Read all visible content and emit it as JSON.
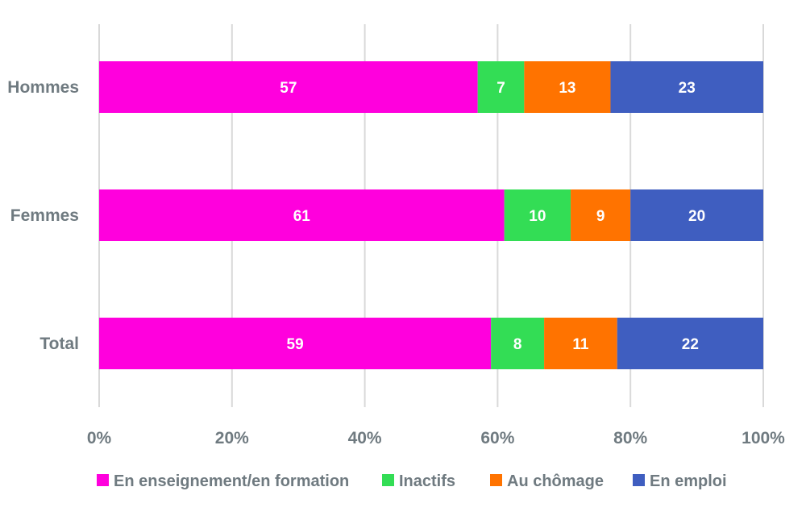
{
  "chart_data": {
    "type": "bar",
    "orientation": "horizontal",
    "stacked": true,
    "percent_stacked": true,
    "categories": [
      "Hommes",
      "Femmes",
      "Total"
    ],
    "series": [
      {
        "name": "En enseignement/en formation",
        "values": [
          57,
          61,
          59
        ],
        "color": "#ff00dd"
      },
      {
        "name": "Inactifs",
        "values": [
          7,
          10,
          8
        ],
        "color": "#33dd55"
      },
      {
        "name": "Au chômage",
        "values": [
          13,
          9,
          11
        ],
        "color": "#ff7300"
      },
      {
        "name": "En emploi",
        "values": [
          23,
          20,
          22
        ],
        "color": "#3f5ec0"
      }
    ],
    "x_ticks": [
      "0%",
      "20%",
      "40%",
      "60%",
      "80%",
      "100%"
    ],
    "xlim": [
      0,
      100
    ],
    "grid": "vertical",
    "legend_position": "bottom"
  }
}
